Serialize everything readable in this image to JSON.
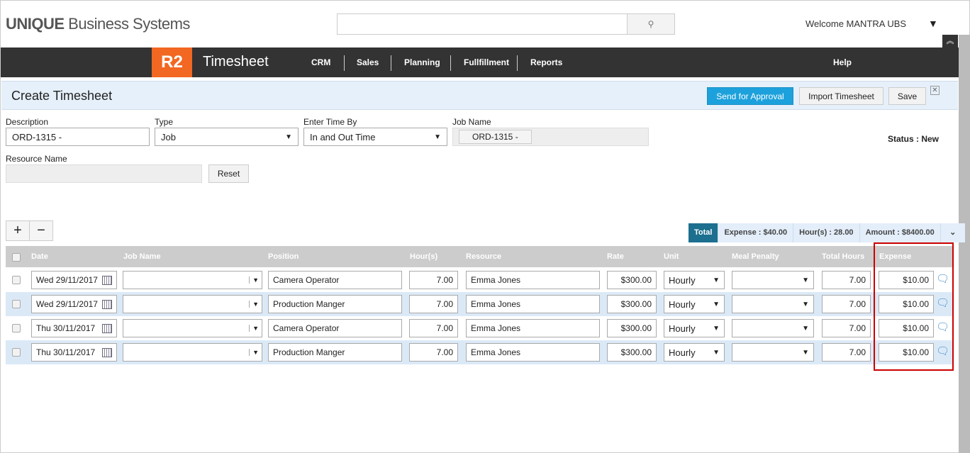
{
  "header": {
    "logo_bold": "UNIQUE",
    "logo_rest": " Business Systems",
    "welcome": "Welcome MANTRA UBS"
  },
  "nav": {
    "badge": "R2",
    "app": "Timesheet",
    "items": [
      "CRM",
      "Sales",
      "Planning",
      "Fullfillment",
      "Reports"
    ],
    "help": "Help"
  },
  "page": {
    "title": "Create Timesheet",
    "send": "Send for Approval",
    "import": "Import Timesheet",
    "save": "Save"
  },
  "form": {
    "description_label": "Description",
    "description": "ORD-1315 -",
    "type_label": "Type",
    "type": "Job",
    "enter_label": "Enter Time By",
    "enter": "In and Out Time",
    "job_label": "Job Name",
    "job": "ORD-1315 -",
    "status": "Status : New",
    "resource_label": "Resource Name",
    "reset": "Reset"
  },
  "totals": {
    "label": "Total",
    "expense": "Expense : $40.00",
    "hours": "Hour(s) : 28.00",
    "amount": "Amount : $8400.00"
  },
  "columns": [
    "Date",
    "Job Name",
    "Position",
    "Hour(s)",
    "Resource",
    "Rate",
    "Unit",
    "Meal Penalty",
    "Total Hours",
    "Expense"
  ],
  "rows": [
    {
      "date": "Wed 29/11/2017",
      "job": "",
      "position": "Camera Operator",
      "hours": "7.00",
      "resource": "Emma Jones",
      "rate": "$300.00",
      "unit": "Hourly",
      "meal": "",
      "total": "7.00",
      "expense": "$10.00"
    },
    {
      "date": "Wed 29/11/2017",
      "job": "",
      "position": "Production Manger",
      "hours": "7.00",
      "resource": "Emma Jones",
      "rate": "$300.00",
      "unit": "Hourly",
      "meal": "",
      "total": "7.00",
      "expense": "$10.00"
    },
    {
      "date": "Thu 30/11/2017",
      "job": "",
      "position": "Camera Operator",
      "hours": "7.00",
      "resource": "Emma Jones",
      "rate": "$300.00",
      "unit": "Hourly",
      "meal": "",
      "total": "7.00",
      "expense": "$10.00"
    },
    {
      "date": "Thu 30/11/2017",
      "job": "",
      "position": "Production Manger",
      "hours": "7.00",
      "resource": "Emma Jones",
      "rate": "$300.00",
      "unit": "Hourly",
      "meal": "",
      "total": "7.00",
      "expense": "$10.00"
    }
  ]
}
